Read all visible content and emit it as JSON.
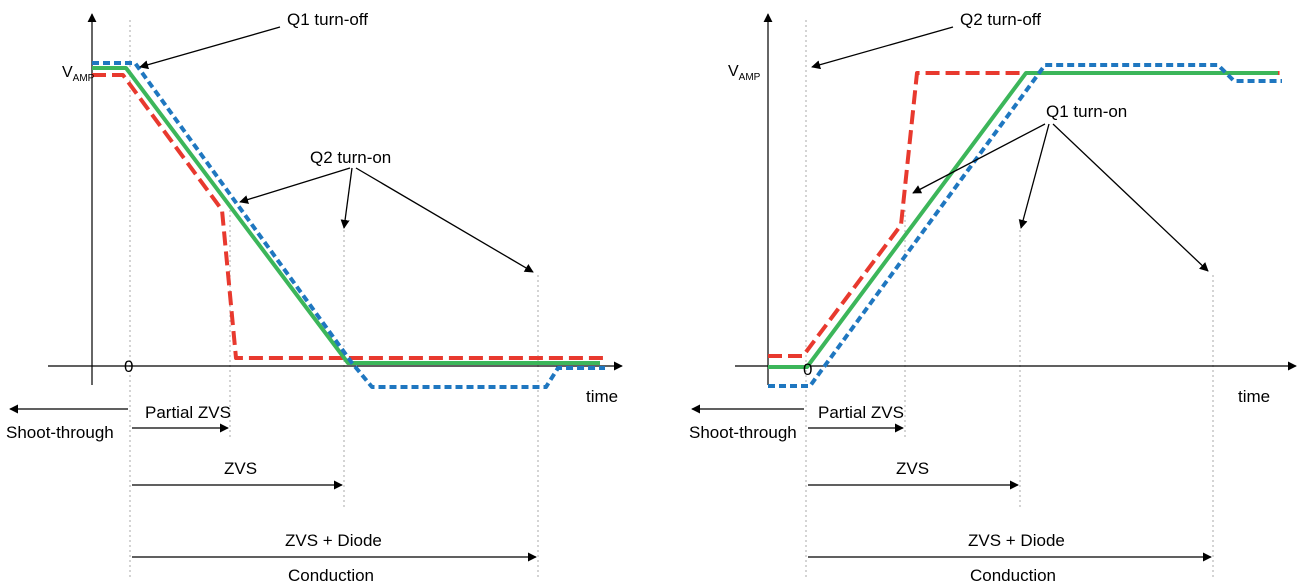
{
  "panels": [
    {
      "id": "left",
      "vamp_main": "V",
      "vamp_sub": "AMP",
      "origin_label": "0",
      "time_label": "time",
      "turn_off_label": "Q1 turn-off",
      "turn_on_label": "Q2 turn-on",
      "shoot_through_label": "Shoot-through",
      "partial_zvs_label": "Partial ZVS",
      "zvs_label": "ZVS",
      "zvs_diode_label": "ZVS + Diode",
      "conduction_label": "Conduction"
    },
    {
      "id": "right",
      "vamp_main": "V",
      "vamp_sub": "AMP",
      "origin_label": "0",
      "time_label": "time",
      "turn_off_label": "Q2 turn-off",
      "turn_on_label": "Q1 turn-on",
      "shoot_through_label": "Shoot-through",
      "partial_zvs_label": "Partial ZVS",
      "zvs_label": "ZVS",
      "zvs_diode_label": "ZVS + Diode",
      "conduction_label": "Conduction"
    }
  ],
  "colors": {
    "partial_zvs_trace": "#e8392e",
    "zvs_trace": "#3cb65a",
    "zvs_diode_trace": "#1f77c0"
  }
}
